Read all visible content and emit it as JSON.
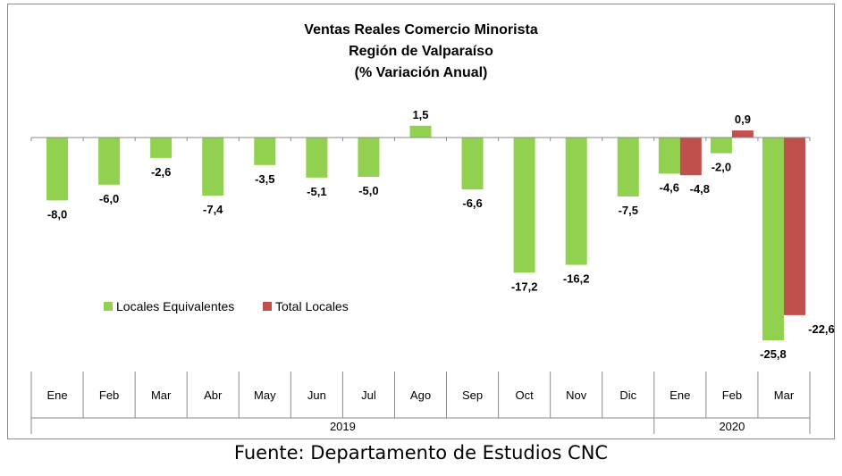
{
  "chart_data": {
    "type": "bar",
    "title": [
      "Ventas Reales Comercio Minorista",
      "Región de Valparaíso",
      "(% Variación Anual)"
    ],
    "xlabel": "",
    "ylabel": "",
    "categories": [
      "Ene",
      "Feb",
      "Mar",
      "Abr",
      "May",
      "Jun",
      "Jul",
      "Ago",
      "Sep",
      "Oct",
      "Nov",
      "Dic",
      "Ene",
      "Feb",
      "Mar"
    ],
    "year_groups": [
      {
        "label": "2019",
        "count": 12
      },
      {
        "label": "2020",
        "count": 3
      }
    ],
    "series": [
      {
        "name": "Locales Equivalentes",
        "color": "#92d050",
        "values": [
          -8.0,
          -6.0,
          -2.6,
          -7.4,
          -3.5,
          -5.1,
          -5.0,
          1.5,
          -6.6,
          -17.2,
          -16.2,
          -7.5,
          -4.6,
          -2.0,
          -25.8
        ],
        "labels": [
          "-8,0",
          "-6,0",
          "-2,6",
          "-7,4",
          "-3,5",
          "-5,1",
          "-5,0",
          "1,5",
          "-6,6",
          "-17,2",
          "-16,2",
          "-7,5",
          "-4,6",
          "-2,0",
          "-25,8"
        ]
      },
      {
        "name": "Total Locales",
        "color": "#c0504d",
        "values": [
          null,
          null,
          null,
          null,
          null,
          null,
          null,
          null,
          null,
          null,
          null,
          null,
          -4.8,
          0.9,
          -22.6
        ],
        "labels": [
          null,
          null,
          null,
          null,
          null,
          null,
          null,
          null,
          null,
          null,
          null,
          null,
          "-4,8",
          "0,9",
          "-22,6"
        ]
      }
    ],
    "grid": false,
    "legend_position": "center-left"
  },
  "source": "Fuente: Departamento de Estudios CNC"
}
